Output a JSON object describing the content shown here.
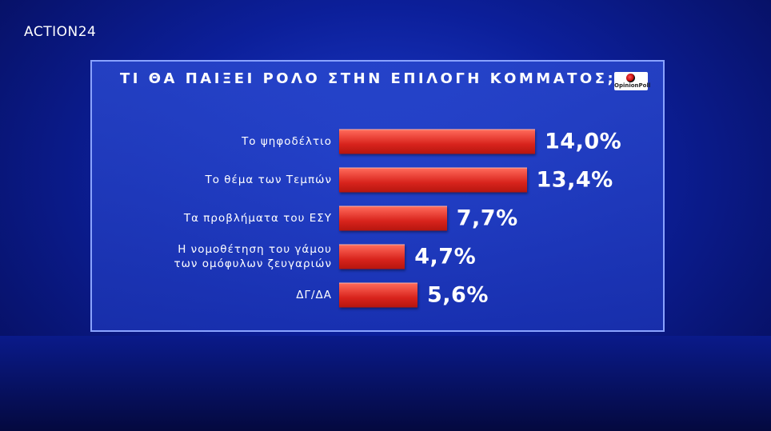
{
  "header": {
    "channel": "ACTION24",
    "source": "OpinionPoll"
  },
  "chart_data": {
    "type": "bar",
    "orientation": "horizontal",
    "title": "ΤΙ ΘΑ ΠΑΙΞΕΙ ΡΟΛΟ ΣΤΗΝ ΕΠΙΛΟΓΗ ΚΟΜΜΑΤΟΣ;",
    "categories": [
      "Το ψηφοδέλτιο",
      "Το θέμα των Τεμπών",
      "Τα προβλήματα του ΕΣΥ",
      "Η νομοθέτηση του γάμου\nτων ομόφυλων ζευγαριών",
      "ΔΓ/ΔΑ"
    ],
    "values": [
      14.0,
      13.4,
      7.7,
      4.7,
      5.6
    ],
    "value_labels": [
      "14,0%",
      "13,4%",
      "7,7%",
      "4,7%",
      "5,6%"
    ],
    "color": "#e0302a"
  }
}
